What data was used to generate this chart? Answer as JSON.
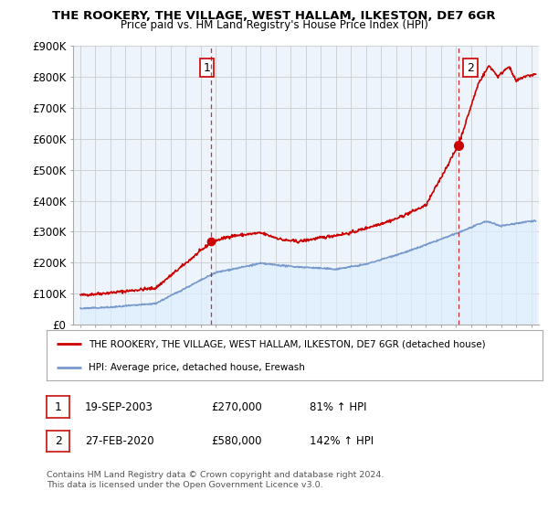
{
  "title": "THE ROOKERY, THE VILLAGE, WEST HALLAM, ILKESTON, DE7 6GR",
  "subtitle": "Price paid vs. HM Land Registry's House Price Index (HPI)",
  "ylabel_ticks": [
    "£0",
    "£100K",
    "£200K",
    "£300K",
    "£400K",
    "£500K",
    "£600K",
    "£700K",
    "£800K",
    "£900K"
  ],
  "ylim": [
    0,
    900000
  ],
  "xlim_start": 1994.5,
  "xlim_end": 2025.5,
  "red_line_color": "#cc0000",
  "blue_line_color": "#7799cc",
  "blue_fill_color": "#ddeeff",
  "vline_color": "#cc0000",
  "marker1_x": 2003.72,
  "marker1_y": 270000,
  "marker2_x": 2020.16,
  "marker2_y": 580000,
  "legend_label1": "THE ROOKERY, THE VILLAGE, WEST HALLAM, ILKESTON, DE7 6GR (detached house)",
  "legend_label2": "HPI: Average price, detached house, Erewash",
  "table_row1": [
    "1",
    "19-SEP-2003",
    "£270,000",
    "81% ↑ HPI"
  ],
  "table_row2": [
    "2",
    "27-FEB-2020",
    "£580,000",
    "142% ↑ HPI"
  ],
  "footnote1": "Contains HM Land Registry data © Crown copyright and database right 2024.",
  "footnote2": "This data is licensed under the Open Government Licence v3.0.",
  "background_color": "#ffffff",
  "plot_bg_color": "#eef4fb",
  "grid_color": "#cccccc"
}
